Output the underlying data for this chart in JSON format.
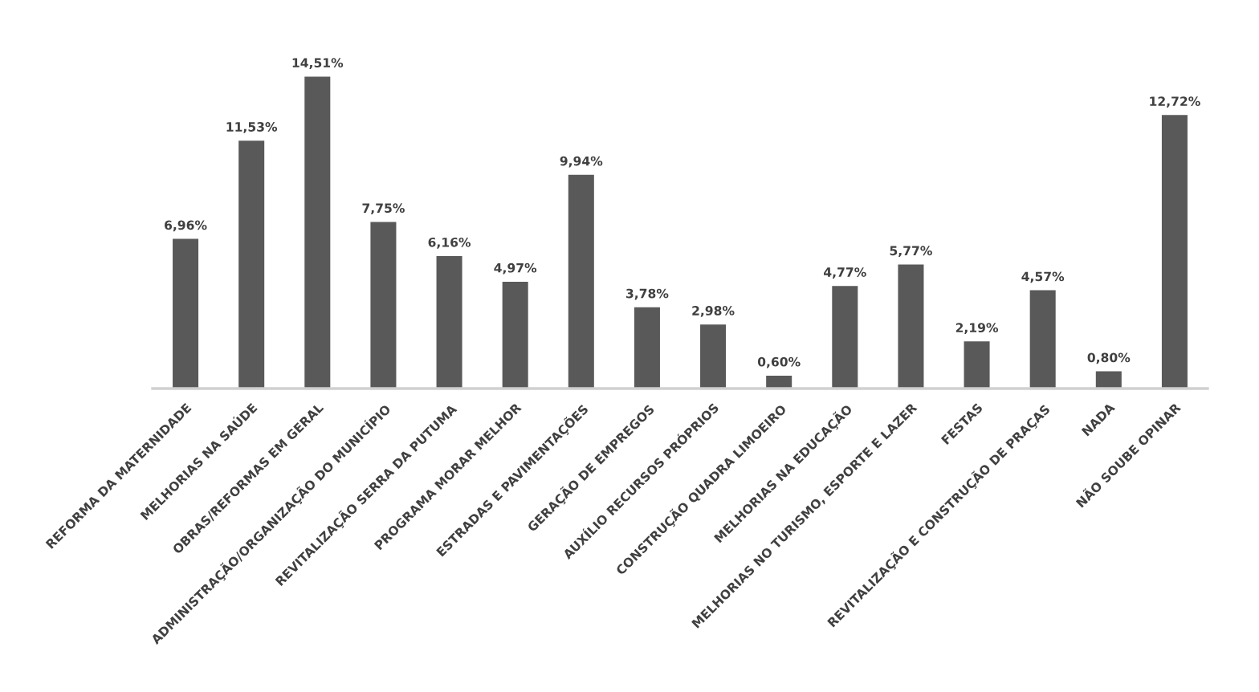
{
  "chart_data": {
    "type": "bar",
    "categories": [
      "REFORMA DA MATERNIDADE",
      "MELHORIAS NA SAÚDE",
      "OBRAS/REFORMAS EM GERAL",
      "ADMINISTRAÇÃO/ORGANIZAÇÃO DO MUNICÍPIO",
      "REVITALIZAÇÃO SERRA DA PUTUMA",
      "PROGRAMA MORAR MELHOR",
      "ESTRADAS E PAVIMENTAÇÕES",
      "GERAÇÃO DE EMPREGOS",
      "AUXÍLIO RECURSOS PRÓPRIOS",
      "CONSTRUÇÃO QUADRA LIMOEIRO",
      "MELHORIAS NA EDUCAÇÃO",
      "MELHORIAS NO TURISMO, ESPORTE E LAZER",
      "FESTAS",
      "REVITALIZAÇÃO E CONSTRUÇÃO DE PRAÇAS",
      "NADA",
      "NÃO SOUBE OPINAR"
    ],
    "values": [
      6.96,
      11.53,
      14.51,
      7.75,
      6.16,
      4.97,
      9.94,
      3.78,
      2.98,
      0.6,
      4.77,
      5.77,
      2.19,
      4.57,
      0.8,
      12.72
    ],
    "value_labels": [
      "6,96%",
      "11,53%",
      "14,51%",
      "7,75%",
      "6,16%",
      "4,97%",
      "9,94%",
      "3,78%",
      "2,98%",
      "0,60%",
      "4,77%",
      "5,77%",
      "2,19%",
      "4,57%",
      "0,80%",
      "12,72%"
    ],
    "color": "#595959",
    "tick_labels": "x",
    "grid": false,
    "legend": false
  }
}
